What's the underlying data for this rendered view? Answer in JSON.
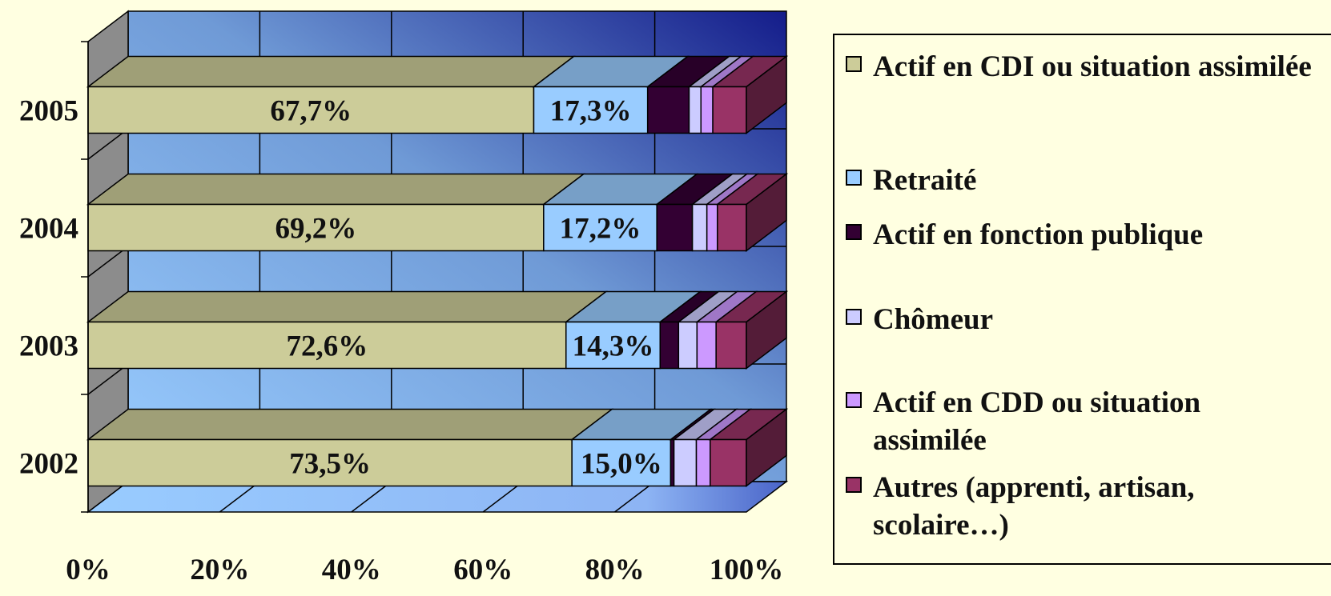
{
  "chart_data": {
    "type": "bar",
    "orientation": "horizontal",
    "stacked": "percent",
    "three_d": true,
    "title": "",
    "xlabel": "",
    "ylabel": "",
    "xlim": [
      0,
      100
    ],
    "x_ticks": [
      "0%",
      "20%",
      "40%",
      "60%",
      "80%",
      "100%"
    ],
    "categories": [
      "2002",
      "2003",
      "2004",
      "2005"
    ],
    "legend_position": "right",
    "series": [
      {
        "name": "Actif en CDI ou situation assimilée",
        "color": "#CCCC99",
        "values": [
          73.5,
          72.6,
          69.2,
          67.7
        ],
        "labels": [
          "73,5%",
          "72,6%",
          "69,2%",
          "67,7%"
        ]
      },
      {
        "name": "Retraité",
        "color": "#99CCFF",
        "values": [
          15.0,
          14.3,
          17.2,
          17.3
        ],
        "labels": [
          "15,0%",
          "14,3%",
          "17,2%",
          "17,3%"
        ]
      },
      {
        "name": "Actif en fonction publique",
        "color": "#330033",
        "values": [
          0.5,
          2.8,
          5.4,
          6.3
        ],
        "labels": []
      },
      {
        "name": "Chômeur",
        "color": "#CCCCFF",
        "values": [
          3.4,
          2.8,
          2.2,
          1.8
        ],
        "labels": []
      },
      {
        "name": "Actif en CDD ou situation assimilée",
        "color": "#CC99FF",
        "values": [
          2.1,
          2.9,
          1.6,
          1.8
        ],
        "labels": []
      },
      {
        "name": "Autres (apprenti, artisan, scolaire…)",
        "color": "#993366",
        "values": [
          5.5,
          4.6,
          4.4,
          5.1
        ],
        "labels": []
      }
    ]
  }
}
